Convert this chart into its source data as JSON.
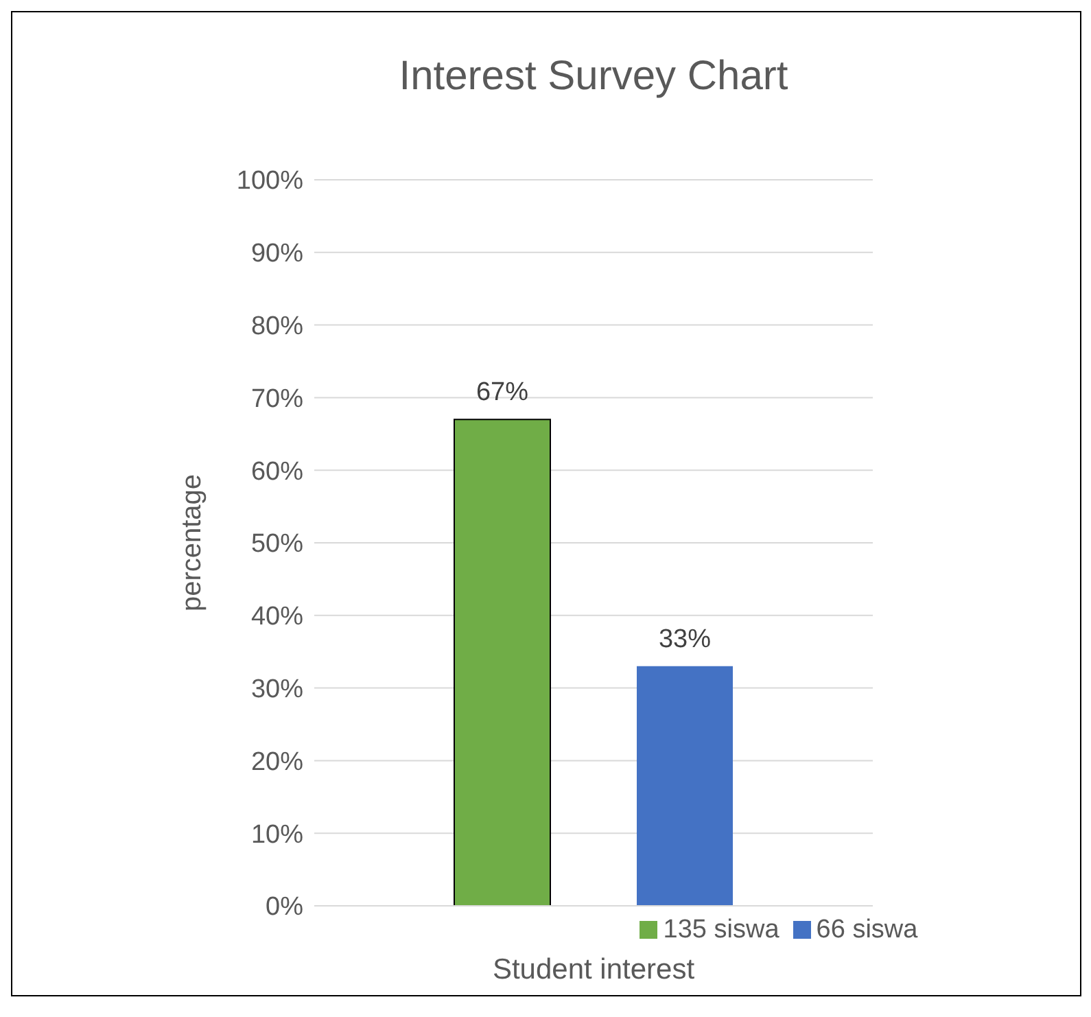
{
  "chart_data": {
    "type": "bar",
    "title": "Interest Survey Chart",
    "xlabel": "Student interest",
    "ylabel": "percentage",
    "categories": [
      null
    ],
    "series": [
      {
        "name": "135 siswa",
        "color": "#70ad47",
        "values": [
          67
        ],
        "value_labels": [
          "67%"
        ]
      },
      {
        "name": "66 siswa",
        "color": "#4472c4",
        "values": [
          33
        ],
        "value_labels": [
          "33%"
        ]
      }
    ],
    "ylim": [
      0,
      100
    ],
    "yticks": [
      {
        "value": 0,
        "label": "0%"
      },
      {
        "value": 10,
        "label": "10%"
      },
      {
        "value": 20,
        "label": "20%"
      },
      {
        "value": 30,
        "label": "30%"
      },
      {
        "value": 40,
        "label": "40%"
      },
      {
        "value": 50,
        "label": "50%"
      },
      {
        "value": 60,
        "label": "60%"
      },
      {
        "value": 70,
        "label": "70%"
      },
      {
        "value": 80,
        "label": "80%"
      },
      {
        "value": 90,
        "label": "90%"
      },
      {
        "value": 100,
        "label": "100%"
      }
    ],
    "grid": "y",
    "legend": "bottom"
  }
}
